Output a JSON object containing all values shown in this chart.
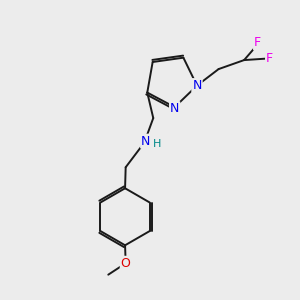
{
  "background_color": "#ececec",
  "bond_color": "#1a1a1a",
  "atom_colors": {
    "N": "#0000ee",
    "O": "#dd0000",
    "F": "#ee00ee",
    "C": "#1a1a1a",
    "H": "#008888"
  },
  "bond_lw": 1.4,
  "figsize": [
    3.0,
    3.0
  ],
  "dpi": 100,
  "xlim": [
    0,
    10
  ],
  "ylim": [
    0,
    10
  ]
}
